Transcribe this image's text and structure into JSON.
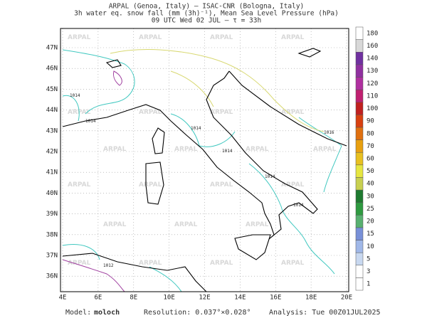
{
  "header": {
    "lines": [
      "ARPAL (Genoa, Italy)  —  ISAC-CNR (Bologna, Italy)",
      "3h water eq. snow fall (mm (3h)⁻¹), Mean Sea Level Pressure (hPa)",
      "09 UTC Wed 02 JUL  —  τ = 33h"
    ]
  },
  "map": {
    "lat_labels": [
      "47N",
      "46N",
      "45N",
      "44N",
      "43N",
      "42N",
      "41N",
      "40N",
      "39N",
      "38N",
      "37N",
      "36N"
    ],
    "lon_labels": [
      "4E",
      "6E",
      "8E",
      "10E",
      "12E",
      "14E",
      "16E",
      "18E",
      "20E"
    ],
    "watermark": "ARPAL",
    "isobar_labels": [
      "1014",
      "1014",
      "1014",
      "1014",
      "1014",
      "1016",
      "1012",
      "1014"
    ]
  },
  "colorbar": {
    "levels": [
      1,
      3,
      5,
      10,
      15,
      20,
      25,
      30,
      40,
      50,
      60,
      70,
      80,
      90,
      100,
      110,
      120,
      130,
      140,
      160,
      180
    ],
    "colors": [
      "#ffffff",
      "#ffffff",
      "#c8d8f0",
      "#a0b8e8",
      "#7890d8",
      "#58b070",
      "#2e9a40",
      "#1e7a30",
      "#c8d050",
      "#e6e640",
      "#e8c020",
      "#e8a010",
      "#e07010",
      "#d84010",
      "#c02020",
      "#c02070",
      "#b030a0",
      "#9030a0",
      "#7030a0",
      "#d8d8d8",
      "#ffffff"
    ]
  },
  "footer": {
    "model_label": "Model:",
    "model": "moloch",
    "resolution": "Resolution: 0.037°×0.028°",
    "analysis": "Analysis: Tue 00Z01JUL2025"
  }
}
